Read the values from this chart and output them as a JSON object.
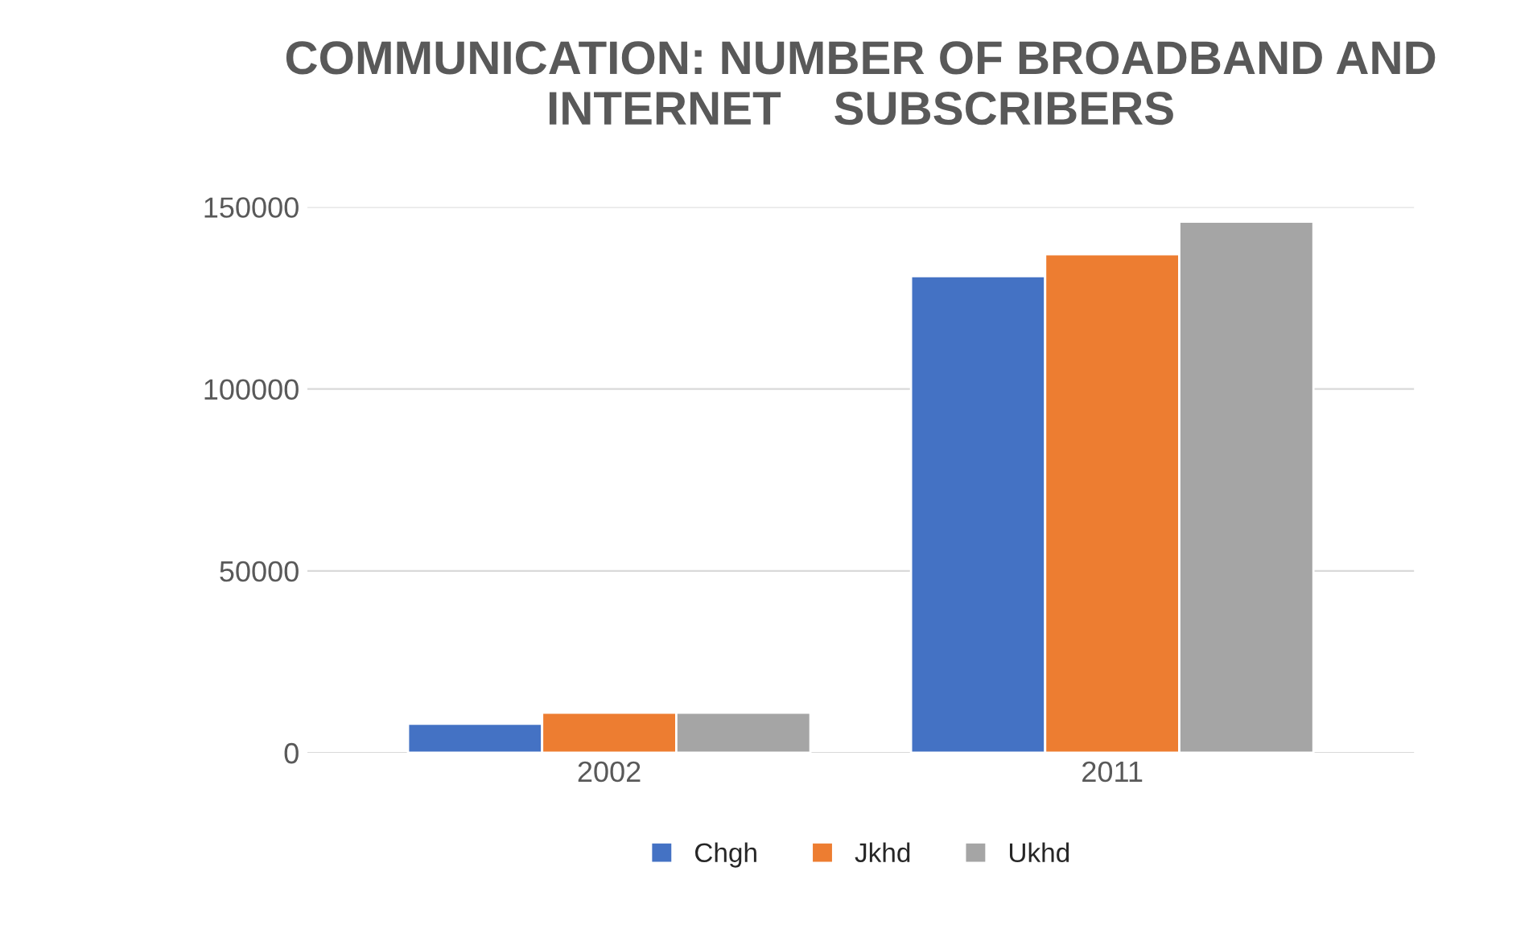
{
  "chart_data": {
    "type": "bar",
    "title": "COMMUNICATION: NUMBER OF BROADBAND AND INTERNET    SUBSCRIBERS",
    "categories": [
      "2002",
      "2011"
    ],
    "series": [
      {
        "name": "Chgh",
        "color": "#4472c4",
        "values": [
          8000,
          131000
        ]
      },
      {
        "name": "Jkhd",
        "color": "#ed7d31",
        "values": [
          11000,
          137000
        ]
      },
      {
        "name": "Ukhd",
        "color": "#a5a5a5",
        "values": [
          11000,
          146000
        ]
      }
    ],
    "ylim": [
      0,
      150000
    ],
    "yticks": [
      0,
      50000,
      100000,
      150000
    ],
    "grid": "y",
    "legend": "bottom"
  }
}
